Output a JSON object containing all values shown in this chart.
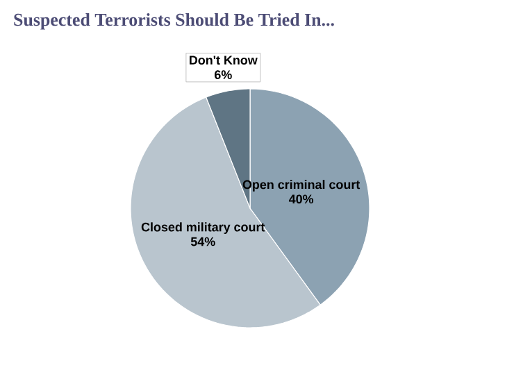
{
  "chart_data": {
    "type": "pie",
    "title": "Suspected Terrorists Should Be Tried In...",
    "categories": [
      "Open criminal court",
      "Closed military court",
      "Don't Know"
    ],
    "values": [
      40,
      54,
      6
    ],
    "value_labels": [
      "40%",
      "54%",
      "6%"
    ],
    "colors": [
      "#8ca2b2",
      "#b9c5ce",
      "#5f7584"
    ],
    "data_labels": true
  }
}
